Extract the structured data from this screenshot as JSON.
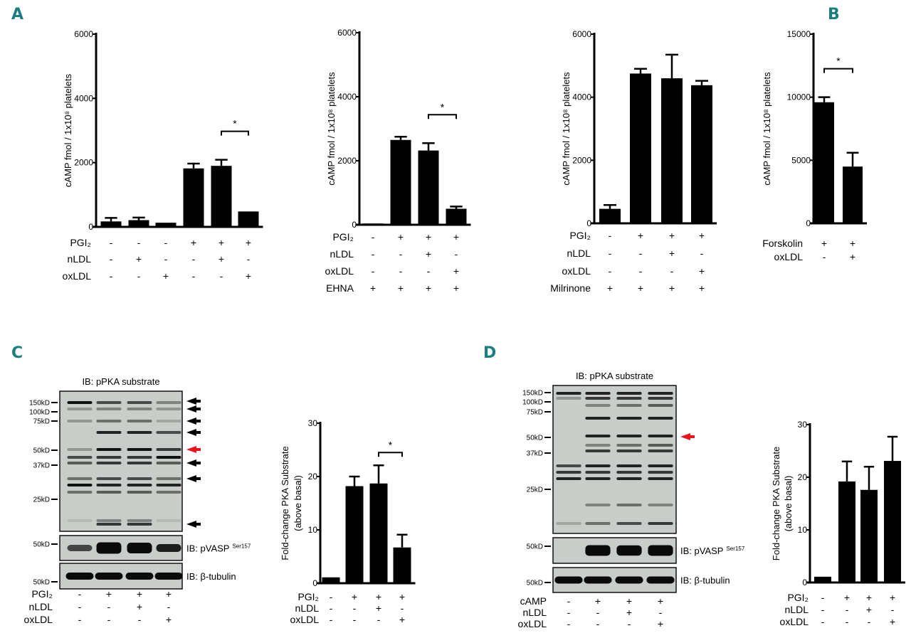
{
  "panels": {
    "a": "A",
    "b": "B",
    "c": "C",
    "d": "D"
  },
  "colors": {
    "panel_letter": "#1b7e80",
    "bar": "#000000",
    "highlight_arrow": "#e8141b",
    "blot_bg": "#c9cdc9"
  },
  "chart_data": [
    {
      "id": "A1",
      "type": "bar",
      "ylabel": "cAMP fmol / 1x10⁸ platelets",
      "ylim": [
        0,
        6000
      ],
      "yticks": [
        "0",
        "2000",
        "4000",
        "6000"
      ],
      "ytick_values": [
        0,
        2000,
        4000,
        6000
      ],
      "values": [
        170,
        210,
        130,
        1820,
        1900,
        480
      ],
      "error_top": [
        280,
        290,
        150,
        1970,
        2090,
        480
      ],
      "conditions": [
        {
          "name": "PGI₂",
          "signs": [
            "-",
            "-",
            "-",
            "+",
            "+",
            "+"
          ]
        },
        {
          "name": "nLDL",
          "signs": [
            "-",
            "+",
            "-",
            "-",
            "+",
            "-"
          ]
        },
        {
          "name": "oxLDL",
          "signs": [
            "-",
            "-",
            "+",
            "-",
            "-",
            "+"
          ]
        }
      ],
      "significance": {
        "between": [
          4,
          5
        ],
        "label": "*"
      }
    },
    {
      "id": "A2",
      "type": "bar",
      "ylabel": "cAMP fmol / 1x10⁸ platelets",
      "ylim": [
        0,
        6000
      ],
      "yticks": [
        "0",
        "2000",
        "4000",
        "6000"
      ],
      "ytick_values": [
        0,
        2000,
        4000,
        6000
      ],
      "values": [
        40,
        2650,
        2320,
        500
      ],
      "error_top": [
        50,
        2750,
        2550,
        570
      ],
      "conditions": [
        {
          "name": "PGI₂",
          "signs": [
            "-",
            "+",
            "+",
            "+"
          ]
        },
        {
          "name": "nLDL",
          "signs": [
            "-",
            "-",
            "+",
            "-"
          ]
        },
        {
          "name": "oxLDL",
          "signs": [
            "-",
            "-",
            "-",
            "+"
          ]
        },
        {
          "name": "EHNA",
          "signs": [
            "+",
            "+",
            "+",
            "+"
          ]
        }
      ],
      "significance": {
        "between": [
          2,
          3
        ],
        "label": "*"
      }
    },
    {
      "id": "A3",
      "type": "bar",
      "ylabel": "cAMP fmol / 1x10⁸ platelets",
      "ylim": [
        0,
        6000
      ],
      "yticks": [
        "0",
        "2000",
        "4000",
        "6000"
      ],
      "ytick_values": [
        0,
        2000,
        4000,
        6000
      ],
      "values": [
        460,
        4750,
        4600,
        4380
      ],
      "error_top": [
        580,
        4900,
        5350,
        4520
      ],
      "conditions": [
        {
          "name": "PGI₂",
          "signs": [
            "-",
            "+",
            "+",
            "+"
          ]
        },
        {
          "name": "nLDL",
          "signs": [
            "-",
            "-",
            "+",
            "-"
          ]
        },
        {
          "name": "oxLDL",
          "signs": [
            "-",
            "-",
            "-",
            "+"
          ]
        },
        {
          "name": "Milrinone",
          "signs": [
            "+",
            "+",
            "+",
            "+"
          ]
        }
      ],
      "significance": null
    },
    {
      "id": "B",
      "type": "bar",
      "ylabel": "cAMP fmol / 1x10⁸ platelets",
      "ylim": [
        0,
        15000
      ],
      "yticks": [
        "0",
        "5000",
        "10000",
        "15000"
      ],
      "ytick_values": [
        0,
        5000,
        10000,
        15000
      ],
      "values": [
        9600,
        4500
      ],
      "error_top": [
        10000,
        5600
      ],
      "conditions": [
        {
          "name": "Forskolin",
          "signs": [
            "+",
            "+"
          ]
        },
        {
          "name": "oxLDL",
          "signs": [
            "-",
            "+"
          ]
        }
      ],
      "significance": {
        "between": [
          0,
          1
        ],
        "label": "*"
      }
    },
    {
      "id": "C",
      "type": "bar",
      "ylabel": "Fold-change PKA Substrate",
      "ylabel2": "(above basal)",
      "ylim": [
        0,
        30
      ],
      "yticks": [
        "0",
        "10",
        "20",
        "30"
      ],
      "ytick_values": [
        0,
        10,
        20,
        30
      ],
      "values": [
        1.1,
        18.2,
        18.7,
        6.7
      ],
      "error_top": [
        1.1,
        20.0,
        22.1,
        9.1
      ],
      "conditions": [
        {
          "name": "PGI₂",
          "signs": [
            "-",
            "+",
            "+",
            "+"
          ]
        },
        {
          "name": "nLDL",
          "signs": [
            "-",
            "-",
            "+",
            "-"
          ]
        },
        {
          "name": "oxLDL",
          "signs": [
            "-",
            "-",
            "-",
            "+"
          ]
        }
      ],
      "significance": {
        "between": [
          2,
          3
        ],
        "label": "*"
      }
    },
    {
      "id": "D",
      "type": "bar",
      "ylabel": "Fold-change PKA Substrate",
      "ylabel2": "(above basal)",
      "ylim": [
        0,
        30
      ],
      "yticks": [
        "0",
        "10",
        "20",
        "30"
      ],
      "ytick_values": [
        0,
        10,
        20,
        30
      ],
      "values": [
        1.1,
        19.2,
        17.6,
        23.1
      ],
      "error_top": [
        1.1,
        23.0,
        22.0,
        27.7
      ],
      "conditions": [
        {
          "name": "PGI₂",
          "signs": [
            "-",
            "+",
            "+",
            "+"
          ]
        },
        {
          "name": "nLDL",
          "signs": [
            "-",
            "-",
            "+",
            "-"
          ]
        },
        {
          "name": "oxLDL",
          "signs": [
            "-",
            "-",
            "-",
            "+"
          ]
        }
      ],
      "significance": null
    }
  ],
  "blots": [
    {
      "id": "C",
      "title": "IB: pPKA substrate",
      "markers": [
        "150kD",
        "100kD",
        "75kD",
        "50kD",
        "37kD",
        "25kD"
      ],
      "pvasp_label": "IB: pVASP",
      "pvasp_sup": "Ser157",
      "pvasp_marker": "50kD",
      "tubulin_label": "IB: β-tubulin",
      "tubulin_marker": "50kD",
      "pvasp_intensity": [
        0.3,
        1.0,
        0.9,
        0.5
      ],
      "conditions": [
        {
          "name": "PGI₂",
          "signs": [
            "-",
            "+",
            "+",
            "+"
          ]
        },
        {
          "name": "nLDL",
          "signs": [
            "-",
            "-",
            "+",
            "-"
          ]
        },
        {
          "name": "oxLDL",
          "signs": [
            "-",
            "-",
            "-",
            "+"
          ]
        }
      ]
    },
    {
      "id": "D",
      "title": "IB: pPKA substrate",
      "markers": [
        "150kD",
        "100kD",
        "75kD",
        "50kD",
        "37kD",
        "25kD"
      ],
      "pvasp_label": "IB: pVASP",
      "pvasp_sup": "Ser157",
      "pvasp_marker": "50kD",
      "tubulin_label": "IB: β-tubulin",
      "tubulin_marker": "50kD",
      "pvasp_intensity": [
        0.0,
        0.9,
        0.85,
        0.9
      ],
      "conditions": [
        {
          "name": "cAMP",
          "signs": [
            "-",
            "+",
            "+",
            "+"
          ]
        },
        {
          "name": "nLDL",
          "signs": [
            "-",
            "-",
            "+",
            "-"
          ]
        },
        {
          "name": "oxLDL",
          "signs": [
            "-",
            "-",
            "-",
            "+"
          ]
        }
      ]
    }
  ]
}
